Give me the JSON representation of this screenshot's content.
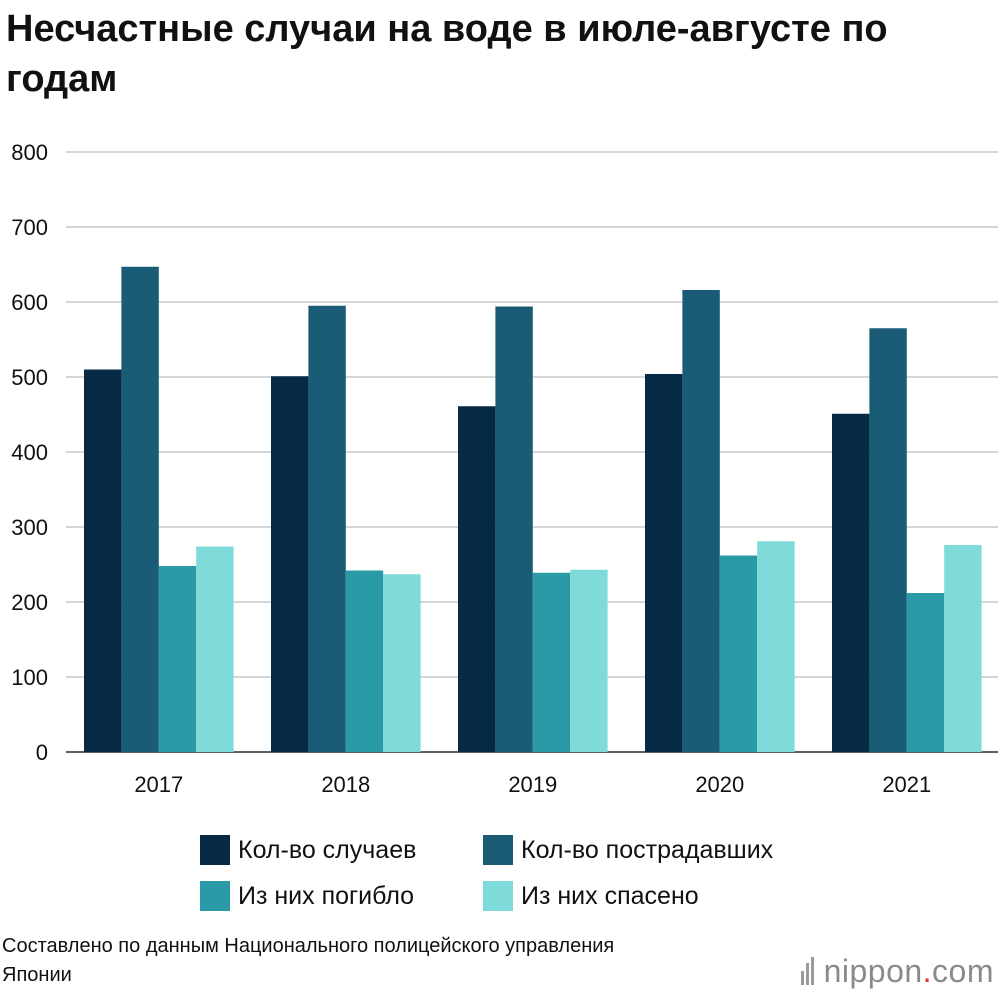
{
  "chart_data": {
    "type": "bar",
    "title": "Несчастные случаи на воде в июле-августе по годам",
    "categories": [
      "2017",
      "2018",
      "2019",
      "2020",
      "2021"
    ],
    "series": [
      {
        "name": "Кол-во случаев",
        "color": "#062a45",
        "values": [
          510,
          501,
          461,
          504,
          451
        ]
      },
      {
        "name": "Кол-во пострадавших",
        "color": "#1a5b76",
        "values": [
          647,
          595,
          594,
          616,
          565
        ]
      },
      {
        "name": "Из них погибло",
        "color": "#2a9ba6",
        "values": [
          248,
          242,
          239,
          262,
          212
        ]
      },
      {
        "name": "Из них спасено",
        "color": "#7fdbd9",
        "values": [
          274,
          237,
          243,
          281,
          276
        ]
      }
    ],
    "yticks": [
      "0",
      "100",
      "200",
      "300",
      "400",
      "500",
      "600",
      "700",
      "800"
    ],
    "ylim": [
      0,
      800
    ],
    "grid": true,
    "legend_position": "bottom"
  },
  "footer": {
    "source": "Составлено по данным Национального полицейского управления Японии",
    "logo": {
      "brand": "nippon",
      "dot": ".",
      "tld": "com"
    }
  }
}
